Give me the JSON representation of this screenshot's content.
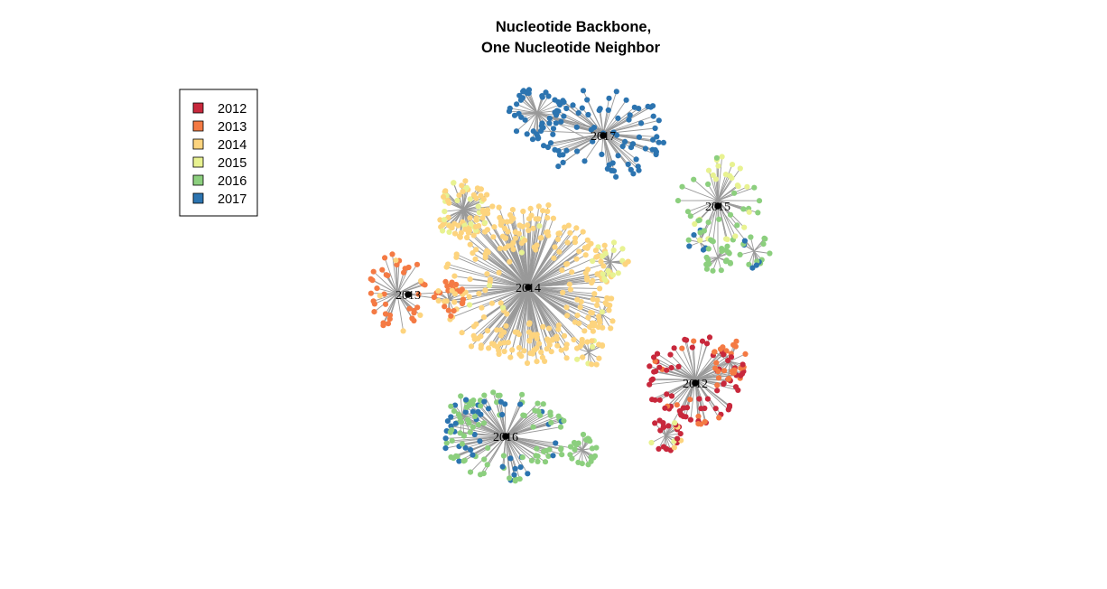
{
  "title": {
    "line1": "Nucleotide Backbone,",
    "line2": "One Nucleotide Neighbor"
  },
  "legend": [
    {
      "label": "2012",
      "color": "#c8283c"
    },
    {
      "label": "2013",
      "color": "#f47a44"
    },
    {
      "label": "2014",
      "color": "#fdd47e"
    },
    {
      "label": "2015",
      "color": "#e8f291"
    },
    {
      "label": "2016",
      "color": "#8ccf7e"
    },
    {
      "label": "2017",
      "color": "#2c74b0"
    }
  ],
  "edge_color": "#999999",
  "hub_color": "#000000",
  "hubs": [
    {
      "label": "2017",
      "year": "2017"
    },
    {
      "label": "2015",
      "year": "2015"
    },
    {
      "label": "2014",
      "year": "2014"
    },
    {
      "label": "2013",
      "year": "2013"
    },
    {
      "label": "2012",
      "year": "2012"
    },
    {
      "label": "2016",
      "year": "2016"
    }
  ]
}
